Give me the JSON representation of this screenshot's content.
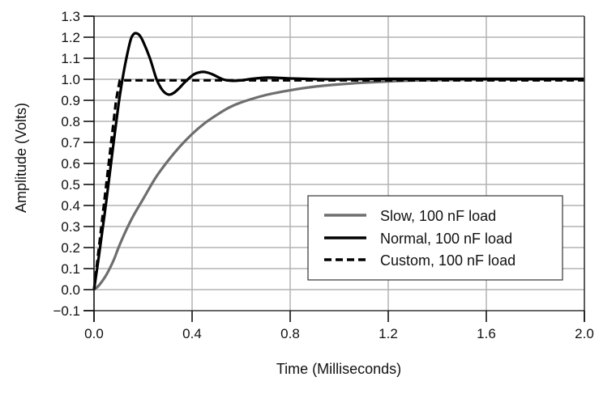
{
  "chart_data": {
    "type": "line",
    "title": "",
    "xlabel": "Time (Milliseconds)",
    "ylabel": "Amplitude (Volts)",
    "xlim": [
      0.0,
      2.0
    ],
    "ylim": [
      -0.1,
      1.3
    ],
    "grid": true,
    "legend_position": "lower-right",
    "x_ticks": [
      0.0,
      0.4,
      0.8,
      1.2,
      1.6,
      2.0
    ],
    "x_tick_labels": [
      "0.0",
      "0.4",
      "0.8",
      "1.2",
      "1.6",
      "2.0"
    ],
    "y_ticks": [
      -0.1,
      0.0,
      0.1,
      0.2,
      0.3,
      0.4,
      0.5,
      0.6,
      0.7,
      0.8,
      0.9,
      1.0,
      1.1,
      1.2,
      1.3
    ],
    "y_tick_labels": [
      "−0.1",
      "0.0",
      "0.1",
      "0.2",
      "0.3",
      "0.4",
      "0.5",
      "0.6",
      "0.7",
      "0.8",
      "0.9",
      "1.0",
      "1.1",
      "1.2",
      "1.3"
    ],
    "series": [
      {
        "name": "Slow, 100 nF load",
        "color": "#6e6e6e",
        "dash": "solid",
        "x": [
          0.0,
          0.02,
          0.05,
          0.08,
          0.1,
          0.13,
          0.16,
          0.2,
          0.25,
          0.3,
          0.35,
          0.4,
          0.45,
          0.5,
          0.55,
          0.6,
          0.7,
          0.8,
          0.9,
          1.0,
          1.1,
          1.2,
          1.3,
          1.4,
          1.6,
          1.8,
          2.0
        ],
        "y": [
          0.0,
          0.02,
          0.07,
          0.14,
          0.2,
          0.28,
          0.35,
          0.43,
          0.53,
          0.61,
          0.68,
          0.74,
          0.79,
          0.83,
          0.865,
          0.89,
          0.925,
          0.948,
          0.965,
          0.976,
          0.984,
          0.99,
          0.994,
          0.996,
          0.998,
          0.999,
          1.0
        ]
      },
      {
        "name": "Normal, 100 nF load",
        "color": "#000000",
        "dash": "solid",
        "x": [
          0.0,
          0.02,
          0.05,
          0.08,
          0.1,
          0.116,
          0.132,
          0.15,
          0.162,
          0.172,
          0.185,
          0.2,
          0.228,
          0.255,
          0.275,
          0.29,
          0.307,
          0.325,
          0.345,
          0.365,
          0.383,
          0.41,
          0.446,
          0.48,
          0.525,
          0.56,
          0.6,
          0.65,
          0.7,
          0.75,
          0.8,
          0.9,
          1.0,
          1.2,
          1.6,
          2.0
        ],
        "y": [
          0.0,
          0.16,
          0.42,
          0.7,
          0.88,
          1.0,
          1.1,
          1.19,
          1.215,
          1.219,
          1.21,
          1.18,
          1.1,
          1.0,
          0.955,
          0.935,
          0.927,
          0.935,
          0.955,
          0.98,
          1.0,
          1.025,
          1.035,
          1.025,
          1.0,
          0.993,
          0.995,
          1.003,
          1.008,
          1.007,
          1.004,
          1.001,
          1.0,
          1.002,
          1.002,
          1.002
        ]
      },
      {
        "name": "Custom, 100 nF load",
        "color": "#000000",
        "dash": "dashed",
        "x": [
          0.0,
          0.03,
          0.06,
          0.09,
          0.105,
          0.5,
          1.0,
          1.5,
          2.0
        ],
        "y": [
          0.0,
          0.3,
          0.6,
          0.9,
          0.995,
          0.995,
          0.995,
          0.995,
          0.995
        ]
      }
    ]
  }
}
